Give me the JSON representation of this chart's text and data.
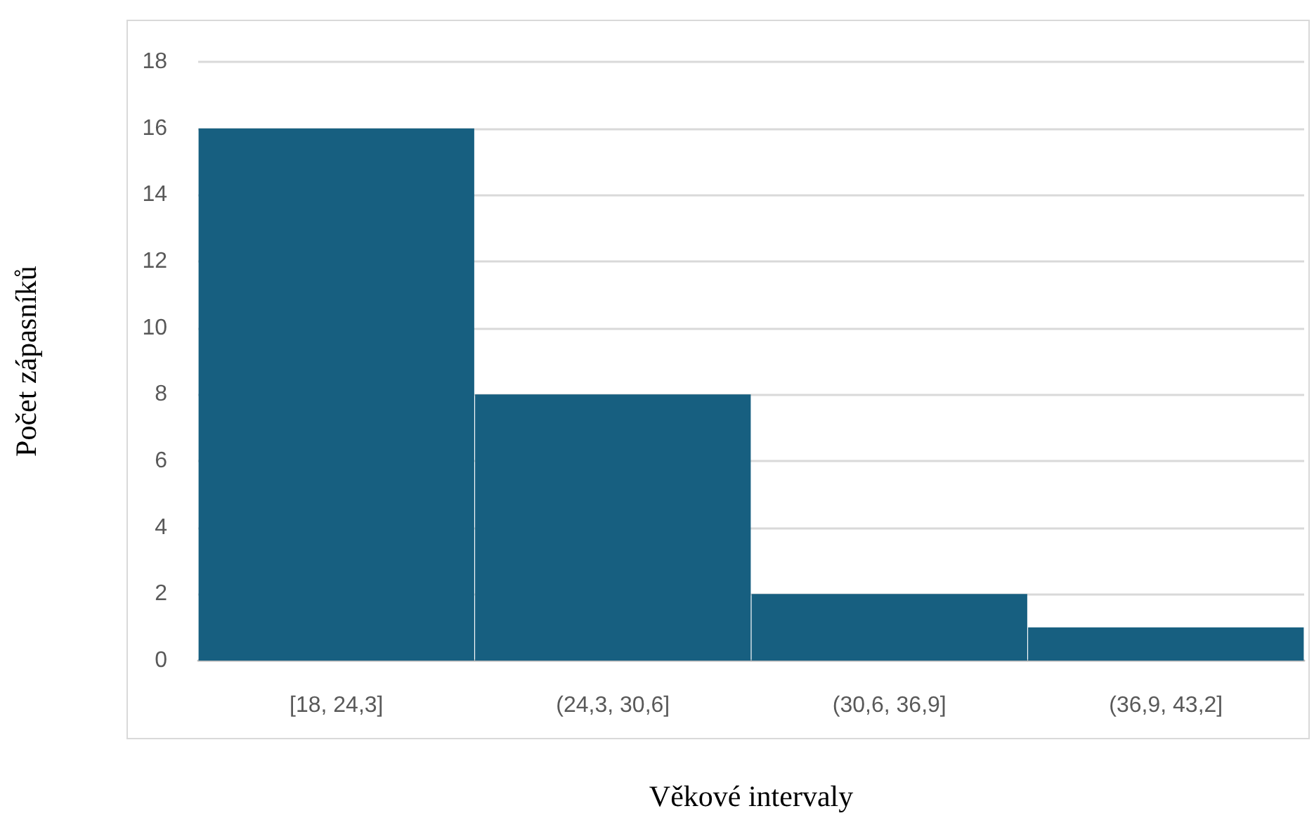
{
  "chart_data": {
    "type": "bar",
    "xlabel": "Věkové intervaly",
    "ylabel": "Počet zápasníků",
    "categories": [
      "[18, 24,3]",
      "(24,3, 30,6]",
      "(30,6, 36,9]",
      "(36,9, 43,2]"
    ],
    "values": [
      16,
      8,
      2,
      1
    ],
    "color": "#175f80",
    "ylim": [
      0,
      18
    ],
    "yticks": [
      0,
      2,
      4,
      6,
      8,
      10,
      12,
      14,
      16,
      18
    ],
    "grid": "y"
  }
}
